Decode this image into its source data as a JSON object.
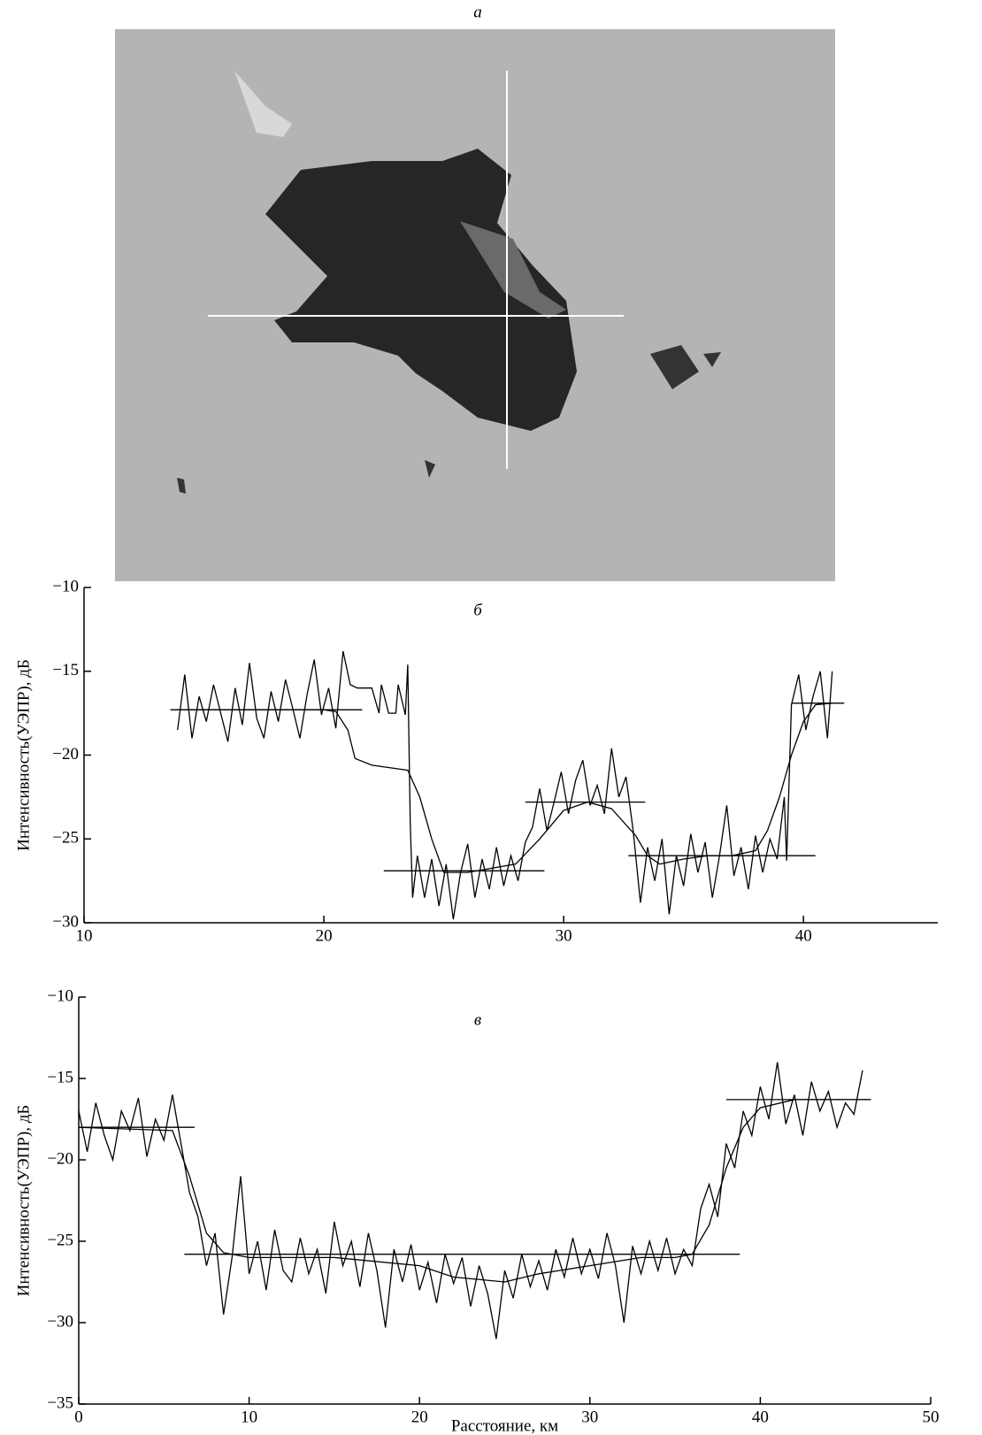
{
  "image": {
    "label": "а"
  },
  "chart_data": [
    {
      "type": "line",
      "label": "б",
      "ylabel": "Интенсивность(УЭПР), дБ",
      "xlim": [
        10,
        45.6
      ],
      "ylim": [
        -30,
        -10
      ],
      "xticks": [
        10,
        20,
        30,
        40
      ],
      "yticks": [
        {
          "value": -10,
          "label": "−10"
        },
        {
          "value": -15,
          "label": "−15"
        },
        {
          "value": -20,
          "label": "−20"
        },
        {
          "value": -25,
          "label": "−25"
        },
        {
          "value": -30,
          "label": "−30"
        }
      ],
      "series": [
        {
          "color": "#000000",
          "x": [
            13.9,
            14.2,
            14.5,
            14.8,
            15.1,
            15.4,
            15.7,
            16,
            16.3,
            16.6,
            16.9,
            17.2,
            17.5,
            17.8,
            18.1,
            18.4,
            18.7,
            19,
            19.3,
            19.6,
            19.9,
            20.2,
            20.5,
            20.8,
            21.1,
            21.4,
            21.7,
            22,
            22.3,
            22.4,
            22.7,
            23,
            23.1,
            23.4,
            23.5,
            23.6,
            23.7,
            23.9,
            24.2,
            24.5,
            24.8,
            25.1,
            25.4,
            25.7,
            26,
            26.3,
            26.6,
            26.9,
            27.2,
            27.5,
            27.8,
            28.1,
            28.4,
            28.7,
            29,
            29.3,
            29.6,
            29.9,
            30.2,
            30.5,
            30.8,
            31.1,
            31.4,
            31.7,
            32,
            32.3,
            32.6,
            32.9,
            33.2,
            33.5,
            33.8,
            34.1,
            34.4,
            34.7,
            35,
            35.3,
            35.6,
            35.9,
            36.2,
            36.5,
            36.8,
            37.1,
            37.4,
            37.7,
            38,
            38.3,
            38.6,
            38.9,
            39.2,
            39.3,
            39.5,
            39.8,
            40.1,
            40.4,
            40.7,
            41,
            41.2
          ],
          "values": [
            -18.5,
            -15.2,
            -19,
            -16.5,
            -18,
            -15.8,
            -17.5,
            -19.2,
            -16,
            -18.2,
            -14.5,
            -17.8,
            -19,
            -16.2,
            -18,
            -15.5,
            -17.2,
            -19,
            -16.4,
            -14.3,
            -17.6,
            -16,
            -18.4,
            -13.8,
            -15.8,
            -16,
            -16,
            -16,
            -17.5,
            -15.8,
            -17.5,
            -17.5,
            -15.8,
            -17.6,
            -14.6,
            -24,
            -28.5,
            -26,
            -28.5,
            -26.2,
            -29,
            -26.5,
            -29.8,
            -27,
            -25.3,
            -28.5,
            -26.2,
            -28,
            -25.5,
            -27.8,
            -26,
            -27.5,
            -25.2,
            -24.3,
            -22,
            -24.5,
            -22.8,
            -21,
            -23.5,
            -21.5,
            -20.3,
            -23,
            -21.8,
            -23.5,
            -19.6,
            -22.5,
            -21.3,
            -24.5,
            -28.8,
            -25.5,
            -27.5,
            -25,
            -29.5,
            -26,
            -27.8,
            -24.7,
            -27,
            -25.2,
            -28.5,
            -26,
            -23,
            -27.2,
            -25.5,
            -28,
            -24.8,
            -27,
            -25,
            -26.2,
            -22.5,
            -26.3,
            -17,
            -15.2,
            -18.5,
            -16.5,
            -15,
            -19,
            -15
          ]
        },
        {
          "color": "#000000",
          "x": [
            13.9,
            20,
            20.5,
            21,
            21.3,
            22,
            23.5,
            24,
            24.5,
            25,
            26,
            28,
            29,
            30,
            31,
            32,
            33,
            33.5,
            34,
            35,
            36,
            37,
            38,
            38.5,
            39,
            39.5,
            40,
            40.5,
            41.2
          ],
          "values": [
            -17.3,
            -17.3,
            -17.4,
            -18.5,
            -20.2,
            -20.6,
            -20.9,
            -22.5,
            -25,
            -27,
            -27,
            -26.5,
            -25,
            -23.3,
            -22.8,
            -23.2,
            -24.8,
            -26,
            -26.5,
            -26.2,
            -26,
            -26,
            -25.7,
            -24.5,
            -22.5,
            -20,
            -18,
            -17,
            -16.9
          ]
        },
        {
          "color": "#000000",
          "x": [
            13.6,
            21.6
          ],
          "values": [
            -17.3,
            -17.3
          ]
        },
        {
          "color": "#000000",
          "x": [
            22.5,
            29.2
          ],
          "values": [
            -26.9,
            -26.9
          ]
        },
        {
          "color": "#000000",
          "x": [
            28.4,
            33.4
          ],
          "values": [
            -22.8,
            -22.8
          ]
        },
        {
          "color": "#000000",
          "x": [
            32.7,
            40.5
          ],
          "values": [
            -26,
            -26
          ]
        },
        {
          "color": "#000000",
          "x": [
            39.5,
            41.7
          ],
          "values": [
            -16.9,
            -16.9
          ]
        }
      ]
    },
    {
      "type": "line",
      "label": "в",
      "ylabel": "Интенсивность(УЭПР), дБ",
      "xlabel": "Расстояние, км",
      "xlim": [
        0,
        50
      ],
      "ylim": [
        -35,
        -10
      ],
      "xticks": [
        0,
        10,
        20,
        30,
        40,
        50
      ],
      "yticks": [
        {
          "value": -10,
          "label": "−10"
        },
        {
          "value": -15,
          "label": "−15"
        },
        {
          "value": -20,
          "label": "−20"
        },
        {
          "value": -25,
          "label": "−25"
        },
        {
          "value": -30,
          "label": "−30"
        },
        {
          "value": -35,
          "label": "−35"
        }
      ],
      "series": [
        {
          "color": "#000000",
          "x": [
            0,
            0.5,
            1,
            1.5,
            2,
            2.5,
            3,
            3.5,
            4,
            4.5,
            5,
            5.5,
            6,
            6.5,
            7,
            7.5,
            8,
            8.5,
            9,
            9.5,
            10,
            10.5,
            11,
            11.5,
            12,
            12.5,
            13,
            13.5,
            14,
            14.5,
            15,
            15.5,
            16,
            16.5,
            17,
            17.5,
            18,
            18.5,
            19,
            19.5,
            20,
            20.5,
            21,
            21.5,
            22,
            22.5,
            23,
            23.5,
            24,
            24.5,
            25,
            25.5,
            26,
            26.5,
            27,
            27.5,
            28,
            28.5,
            29,
            29.5,
            30,
            30.5,
            31,
            31.5,
            32,
            32.5,
            33,
            33.5,
            34,
            34.5,
            35,
            35.5,
            36,
            36.5,
            37,
            37.5,
            38,
            38.5,
            39,
            39.5,
            40,
            40.5,
            41,
            41.5,
            42,
            42.5,
            43,
            43.5,
            44,
            44.5,
            45,
            45.5,
            46
          ],
          "values": [
            -17,
            -19.5,
            -16.5,
            -18.5,
            -20,
            -17,
            -18.2,
            -16.2,
            -19.8,
            -17.5,
            -18.8,
            -16,
            -19,
            -22,
            -23.5,
            -26.5,
            -24.5,
            -29.5,
            -26,
            -21,
            -27,
            -25,
            -28,
            -24.3,
            -26.8,
            -27.5,
            -24.8,
            -27,
            -25.5,
            -28.2,
            -23.8,
            -26.5,
            -25,
            -27.8,
            -24.5,
            -26.8,
            -30.3,
            -25.5,
            -27.5,
            -25.2,
            -28,
            -26.3,
            -28.8,
            -25.8,
            -27.6,
            -26,
            -29,
            -26.5,
            -28.2,
            -31,
            -26.8,
            -28.5,
            -25.8,
            -27.8,
            -26.2,
            -28,
            -25.5,
            -27.2,
            -24.8,
            -27,
            -25.5,
            -27.3,
            -24.5,
            -26.5,
            -30,
            -25.3,
            -27,
            -25,
            -26.8,
            -24.8,
            -27,
            -25.5,
            -26.5,
            -23,
            -21.5,
            -23.5,
            -19,
            -20.5,
            -17,
            -18.5,
            -15.5,
            -17.5,
            -14,
            -17.8,
            -16,
            -18.5,
            -15.2,
            -17,
            -15.8,
            -18,
            -16.5,
            -17.2,
            -14.5
          ]
        },
        {
          "color": "#000000",
          "x": [
            0,
            5.5,
            6.5,
            7.5,
            8.5,
            10,
            15,
            20,
            22,
            25,
            27,
            30,
            33,
            35,
            36,
            37,
            38,
            39,
            40,
            42,
            46.4
          ],
          "values": [
            -18,
            -18.2,
            -21,
            -24.5,
            -25.7,
            -26,
            -26,
            -26.5,
            -27.2,
            -27.5,
            -27,
            -26.5,
            -26,
            -26,
            -25.8,
            -24,
            -20.5,
            -18,
            -16.8,
            -16.3,
            -16.3
          ]
        },
        {
          "color": "#000000",
          "x": [
            0,
            6.8
          ],
          "values": [
            -18,
            -18
          ]
        },
        {
          "color": "#000000",
          "x": [
            6.2,
            38.8
          ],
          "values": [
            -25.8,
            -25.8
          ]
        },
        {
          "color": "#000000",
          "x": [
            38,
            46.5
          ],
          "values": [
            -16.3,
            -16.3
          ]
        }
      ]
    }
  ]
}
